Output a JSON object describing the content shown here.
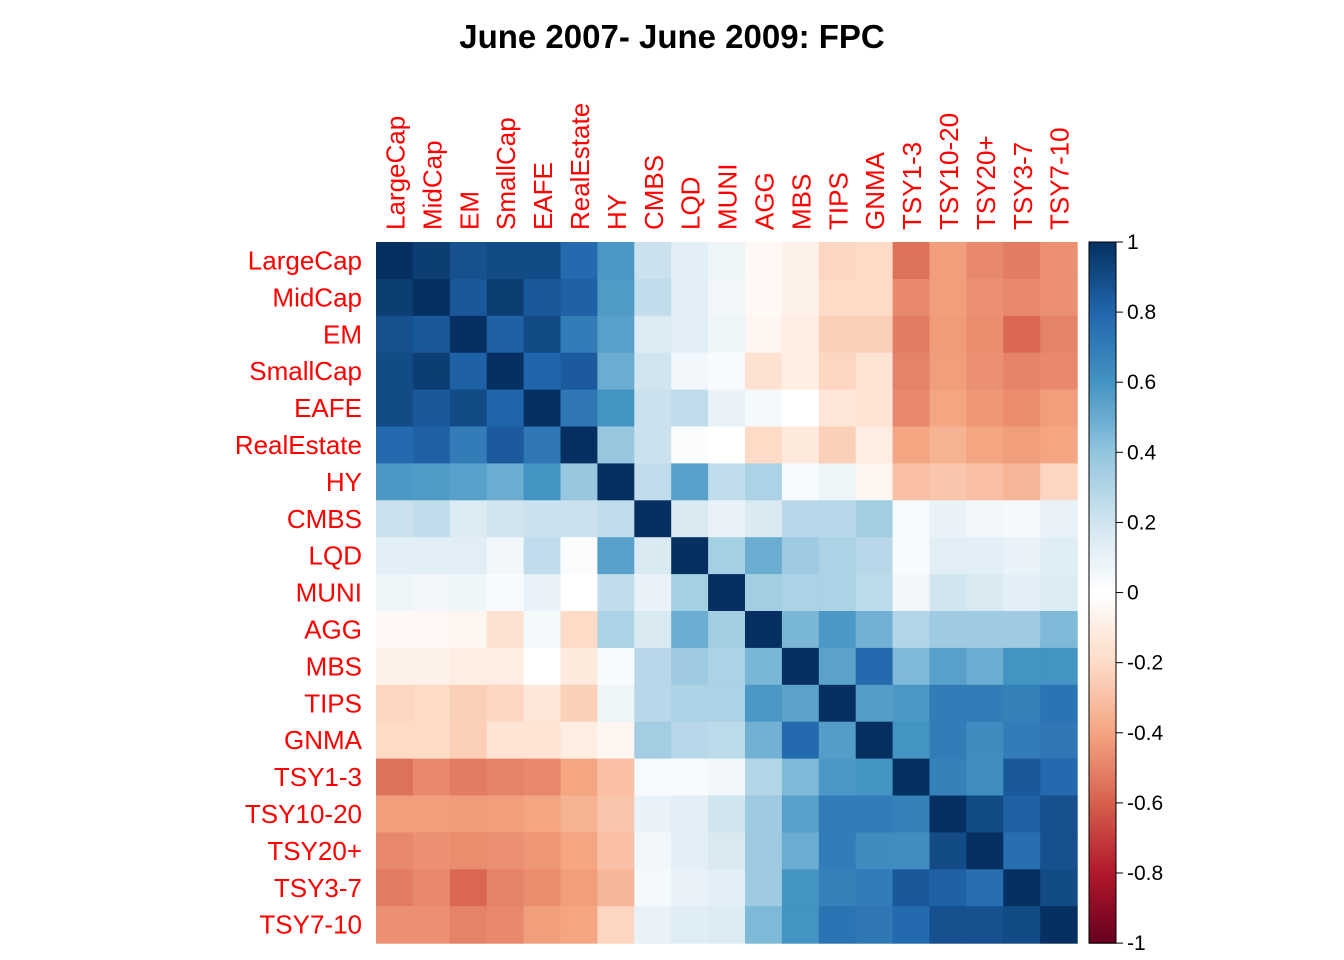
{
  "title": "June 2007- June 2009: FPC",
  "chart_data": {
    "type": "heatmap",
    "title": "June 2007- June 2009: FPC",
    "labels": [
      "LargeCap",
      "MidCap",
      "EM",
      "SmallCap",
      "EAFE",
      "RealEstate",
      "HY",
      "CMBS",
      "LQD",
      "MUNI",
      "AGG",
      "MBS",
      "TIPS",
      "GNMA",
      "TSY1-3",
      "TSY10-20",
      "TSY20+",
      "TSY3-7",
      "TSY7-10"
    ],
    "label_color": "#ff0000",
    "matrix": [
      [
        1.0,
        0.95,
        0.88,
        0.9,
        0.9,
        0.78,
        0.58,
        0.22,
        0.12,
        0.08,
        -0.04,
        -0.08,
        -0.22,
        -0.2,
        -0.55,
        -0.42,
        -0.48,
        -0.52,
        -0.46
      ],
      [
        0.95,
        1.0,
        0.85,
        0.95,
        0.85,
        0.82,
        0.57,
        0.25,
        0.12,
        0.06,
        -0.04,
        -0.08,
        -0.2,
        -0.2,
        -0.48,
        -0.42,
        -0.46,
        -0.48,
        -0.46
      ],
      [
        0.88,
        0.85,
        1.0,
        0.82,
        0.9,
        0.7,
        0.55,
        0.15,
        0.13,
        0.07,
        -0.05,
        -0.1,
        -0.24,
        -0.25,
        -0.52,
        -0.43,
        -0.47,
        -0.58,
        -0.5
      ],
      [
        0.9,
        0.95,
        0.82,
        1.0,
        0.8,
        0.84,
        0.5,
        0.2,
        0.06,
        0.03,
        -0.16,
        -0.1,
        -0.22,
        -0.15,
        -0.5,
        -0.42,
        -0.46,
        -0.5,
        -0.48
      ],
      [
        0.9,
        0.85,
        0.9,
        0.8,
        1.0,
        0.72,
        0.6,
        0.22,
        0.25,
        0.1,
        0.05,
        0.0,
        -0.14,
        -0.15,
        -0.48,
        -0.4,
        -0.44,
        -0.47,
        -0.42
      ],
      [
        0.78,
        0.82,
        0.7,
        0.84,
        0.72,
        1.0,
        0.38,
        0.22,
        0.02,
        0.0,
        -0.2,
        -0.12,
        -0.24,
        -0.1,
        -0.4,
        -0.35,
        -0.4,
        -0.42,
        -0.4
      ],
      [
        0.58,
        0.57,
        0.55,
        0.5,
        0.6,
        0.38,
        1.0,
        0.25,
        0.55,
        0.25,
        0.32,
        0.03,
        0.08,
        -0.05,
        -0.3,
        -0.28,
        -0.3,
        -0.34,
        -0.22
      ],
      [
        0.22,
        0.25,
        0.15,
        0.2,
        0.22,
        0.22,
        0.25,
        1.0,
        0.16,
        0.1,
        0.16,
        0.28,
        0.28,
        0.35,
        0.04,
        0.1,
        0.06,
        0.05,
        0.1
      ],
      [
        0.12,
        0.12,
        0.13,
        0.06,
        0.25,
        0.02,
        0.55,
        0.16,
        1.0,
        0.34,
        0.5,
        0.36,
        0.32,
        0.28,
        0.03,
        0.13,
        0.12,
        0.1,
        0.14
      ],
      [
        0.08,
        0.06,
        0.07,
        0.03,
        0.1,
        0.0,
        0.25,
        0.1,
        0.34,
        1.0,
        0.35,
        0.32,
        0.32,
        0.27,
        0.06,
        0.2,
        0.17,
        0.12,
        0.15
      ],
      [
        -0.04,
        -0.04,
        -0.05,
        -0.16,
        0.05,
        -0.2,
        0.32,
        0.16,
        0.5,
        0.35,
        1.0,
        0.46,
        0.58,
        0.48,
        0.3,
        0.36,
        0.36,
        0.36,
        0.45
      ],
      [
        -0.08,
        -0.08,
        -0.1,
        -0.1,
        0.0,
        -0.12,
        0.03,
        0.28,
        0.36,
        0.32,
        0.46,
        1.0,
        0.54,
        0.78,
        0.45,
        0.55,
        0.5,
        0.6,
        0.6
      ],
      [
        -0.22,
        -0.2,
        -0.24,
        -0.22,
        -0.14,
        -0.24,
        0.08,
        0.28,
        0.32,
        0.32,
        0.58,
        0.54,
        1.0,
        0.56,
        0.58,
        0.7,
        0.7,
        0.68,
        0.74
      ],
      [
        -0.2,
        -0.2,
        -0.25,
        -0.15,
        -0.15,
        -0.1,
        -0.05,
        0.35,
        0.28,
        0.27,
        0.48,
        0.78,
        0.56,
        1.0,
        0.6,
        0.7,
        0.63,
        0.7,
        0.72
      ],
      [
        -0.55,
        -0.48,
        -0.52,
        -0.5,
        -0.48,
        -0.4,
        -0.3,
        0.04,
        0.03,
        0.06,
        0.3,
        0.45,
        0.58,
        0.6,
        1.0,
        0.68,
        0.62,
        0.85,
        0.78
      ],
      [
        -0.42,
        -0.42,
        -0.43,
        -0.42,
        -0.4,
        -0.35,
        -0.28,
        0.1,
        0.13,
        0.2,
        0.36,
        0.55,
        0.7,
        0.7,
        0.68,
        1.0,
        0.9,
        0.82,
        0.88
      ],
      [
        -0.48,
        -0.46,
        -0.47,
        -0.46,
        -0.44,
        -0.4,
        -0.3,
        0.06,
        0.12,
        0.17,
        0.36,
        0.5,
        0.7,
        0.63,
        0.62,
        0.9,
        1.0,
        0.76,
        0.88
      ],
      [
        -0.52,
        -0.48,
        -0.58,
        -0.5,
        -0.47,
        -0.42,
        -0.34,
        0.05,
        0.1,
        0.12,
        0.36,
        0.6,
        0.68,
        0.7,
        0.85,
        0.82,
        0.76,
        1.0,
        0.9
      ],
      [
        -0.46,
        -0.46,
        -0.5,
        -0.48,
        -0.42,
        -0.4,
        -0.22,
        0.1,
        0.14,
        0.15,
        0.45,
        0.6,
        0.74,
        0.72,
        0.78,
        0.88,
        0.88,
        0.9,
        1.0
      ]
    ],
    "color_scale": {
      "min": -1,
      "max": 1,
      "ticks": [
        1,
        0.8,
        0.6,
        0.4,
        0.2,
        0,
        -0.2,
        -0.4,
        -0.6,
        -0.8,
        -1
      ],
      "tick_labels": [
        "1",
        "0.8",
        "0.6",
        "0.4",
        "0.2",
        "0",
        "-0.2",
        "-0.4",
        "-0.6",
        "-0.8",
        "-1"
      ],
      "stops": [
        "#67001F",
        "#B2182B",
        "#D6604D",
        "#F4A582",
        "#FDDBC7",
        "#FFFFFF",
        "#D1E5F0",
        "#92C5DE",
        "#4393C3",
        "#2166AC",
        "#053061"
      ]
    }
  }
}
